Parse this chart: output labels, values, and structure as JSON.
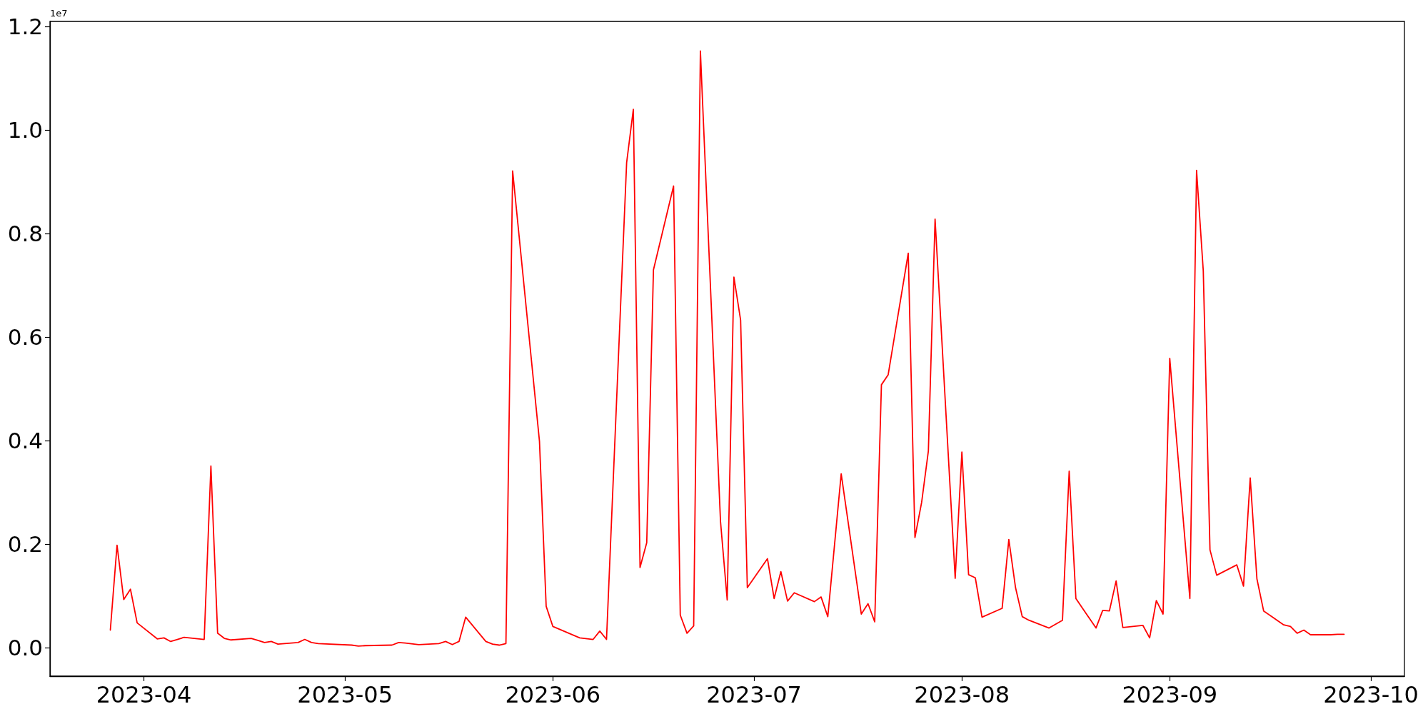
{
  "chart_data": {
    "type": "line",
    "x": [
      "2023-03-27",
      "2023-03-28",
      "2023-03-29",
      "2023-03-30",
      "2023-03-31",
      "2023-04-03",
      "2023-04-04",
      "2023-04-05",
      "2023-04-06",
      "2023-04-07",
      "2023-04-10",
      "2023-04-11",
      "2023-04-12",
      "2023-04-13",
      "2023-04-14",
      "2023-04-17",
      "2023-04-18",
      "2023-04-19",
      "2023-04-20",
      "2023-04-21",
      "2023-04-24",
      "2023-04-25",
      "2023-04-26",
      "2023-04-27",
      "2023-05-02",
      "2023-05-03",
      "2023-05-04",
      "2023-05-08",
      "2023-05-09",
      "2023-05-10",
      "2023-05-12",
      "2023-05-15",
      "2023-05-16",
      "2023-05-17",
      "2023-05-18",
      "2023-05-19",
      "2023-05-22",
      "2023-05-23",
      "2023-05-24",
      "2023-05-25",
      "2023-05-26",
      "2023-05-30",
      "2023-05-31",
      "2023-06-01",
      "2023-06-05",
      "2023-06-07",
      "2023-06-08",
      "2023-06-09",
      "2023-06-12",
      "2023-06-13",
      "2023-06-14",
      "2023-06-15",
      "2023-06-16",
      "2023-06-19",
      "2023-06-20",
      "2023-06-21",
      "2023-06-22",
      "2023-06-23",
      "2023-06-26",
      "2023-06-27",
      "2023-06-28",
      "2023-06-29",
      "2023-06-30",
      "2023-07-03",
      "2023-07-04",
      "2023-07-05",
      "2023-07-06",
      "2023-07-07",
      "2023-07-10",
      "2023-07-11",
      "2023-07-12",
      "2023-07-14",
      "2023-07-17",
      "2023-07-18",
      "2023-07-19",
      "2023-07-20",
      "2023-07-21",
      "2023-07-24",
      "2023-07-25",
      "2023-07-26",
      "2023-07-27",
      "2023-07-28",
      "2023-07-31",
      "2023-08-01",
      "2023-08-02",
      "2023-08-03",
      "2023-08-04",
      "2023-08-07",
      "2023-08-08",
      "2023-08-09",
      "2023-08-10",
      "2023-08-11",
      "2023-08-14",
      "2023-08-16",
      "2023-08-17",
      "2023-08-18",
      "2023-08-21",
      "2023-08-22",
      "2023-08-23",
      "2023-08-24",
      "2023-08-25",
      "2023-08-28",
      "2023-08-29",
      "2023-08-30",
      "2023-08-31",
      "2023-09-01",
      "2023-09-04",
      "2023-09-05",
      "2023-09-06",
      "2023-09-07",
      "2023-09-08",
      "2023-09-11",
      "2023-09-12",
      "2023-09-13",
      "2023-09-14",
      "2023-09-15",
      "2023-09-18",
      "2023-09-19",
      "2023-09-20",
      "2023-09-21",
      "2023-09-22",
      "2023-09-25",
      "2023-09-26",
      "2023-09-27"
    ],
    "series": [
      {
        "color": "#ff0000",
        "values": [
          0.034,
          0.198,
          0.093,
          0.113,
          0.048,
          0.017,
          0.019,
          0.012,
          0.016,
          0.02,
          0.016,
          0.351,
          0.028,
          0.018,
          0.015,
          0.018,
          0.014,
          0.01,
          0.012,
          0.007,
          0.01,
          0.016,
          0.01,
          0.008,
          0.005,
          0.003,
          0.004,
          0.005,
          0.01,
          0.009,
          0.006,
          0.008,
          0.012,
          0.006,
          0.012,
          0.059,
          0.012,
          0.007,
          0.005,
          0.008,
          0.921,
          0.399,
          0.08,
          0.041,
          0.019,
          0.016,
          0.032,
          0.016,
          0.937,
          1.04,
          0.155,
          0.203,
          0.73,
          0.892,
          0.063,
          0.028,
          0.042,
          1.153,
          0.244,
          0.092,
          0.716,
          0.633,
          0.116,
          0.172,
          0.095,
          0.147,
          0.09,
          0.106,
          0.089,
          0.098,
          0.06,
          0.336,
          0.065,
          0.085,
          0.05,
          0.508,
          0.527,
          0.762,
          0.213,
          0.281,
          0.38,
          0.828,
          0.134,
          0.378,
          0.141,
          0.135,
          0.059,
          0.076,
          0.209,
          0.116,
          0.06,
          0.053,
          0.038,
          0.053,
          0.341,
          0.095,
          0.038,
          0.072,
          0.071,
          0.129,
          0.039,
          0.043,
          0.019,
          0.091,
          0.065,
          0.559,
          0.095,
          0.922,
          0.728,
          0.189,
          0.14,
          0.16,
          0.119,
          0.328,
          0.133,
          0.071,
          0.044,
          0.041,
          0.028,
          0.034,
          0.025,
          0.025,
          0.026,
          0.026
        ]
      }
    ],
    "xlim": [
      "2023-03-18",
      "2023-10-06"
    ],
    "xticks": [
      {
        "value": "2023-04-01",
        "label": "2023-04"
      },
      {
        "value": "2023-05-01",
        "label": "2023-05"
      },
      {
        "value": "2023-06-01",
        "label": "2023-06"
      },
      {
        "value": "2023-07-01",
        "label": "2023-07"
      },
      {
        "value": "2023-08-01",
        "label": "2023-08"
      },
      {
        "value": "2023-09-01",
        "label": "2023-09"
      },
      {
        "value": "2023-10-01",
        "label": "2023-10"
      }
    ],
    "ylim": [
      -0.055,
      1.21
    ],
    "yticks": [
      {
        "value": 0,
        "label": "0.0"
      },
      0.2,
      0.4,
      0.6,
      0.8,
      {
        "value": 1,
        "label": "1.0"
      },
      1.2
    ],
    "annotations": [
      "1e7"
    ],
    "grid": false
  }
}
